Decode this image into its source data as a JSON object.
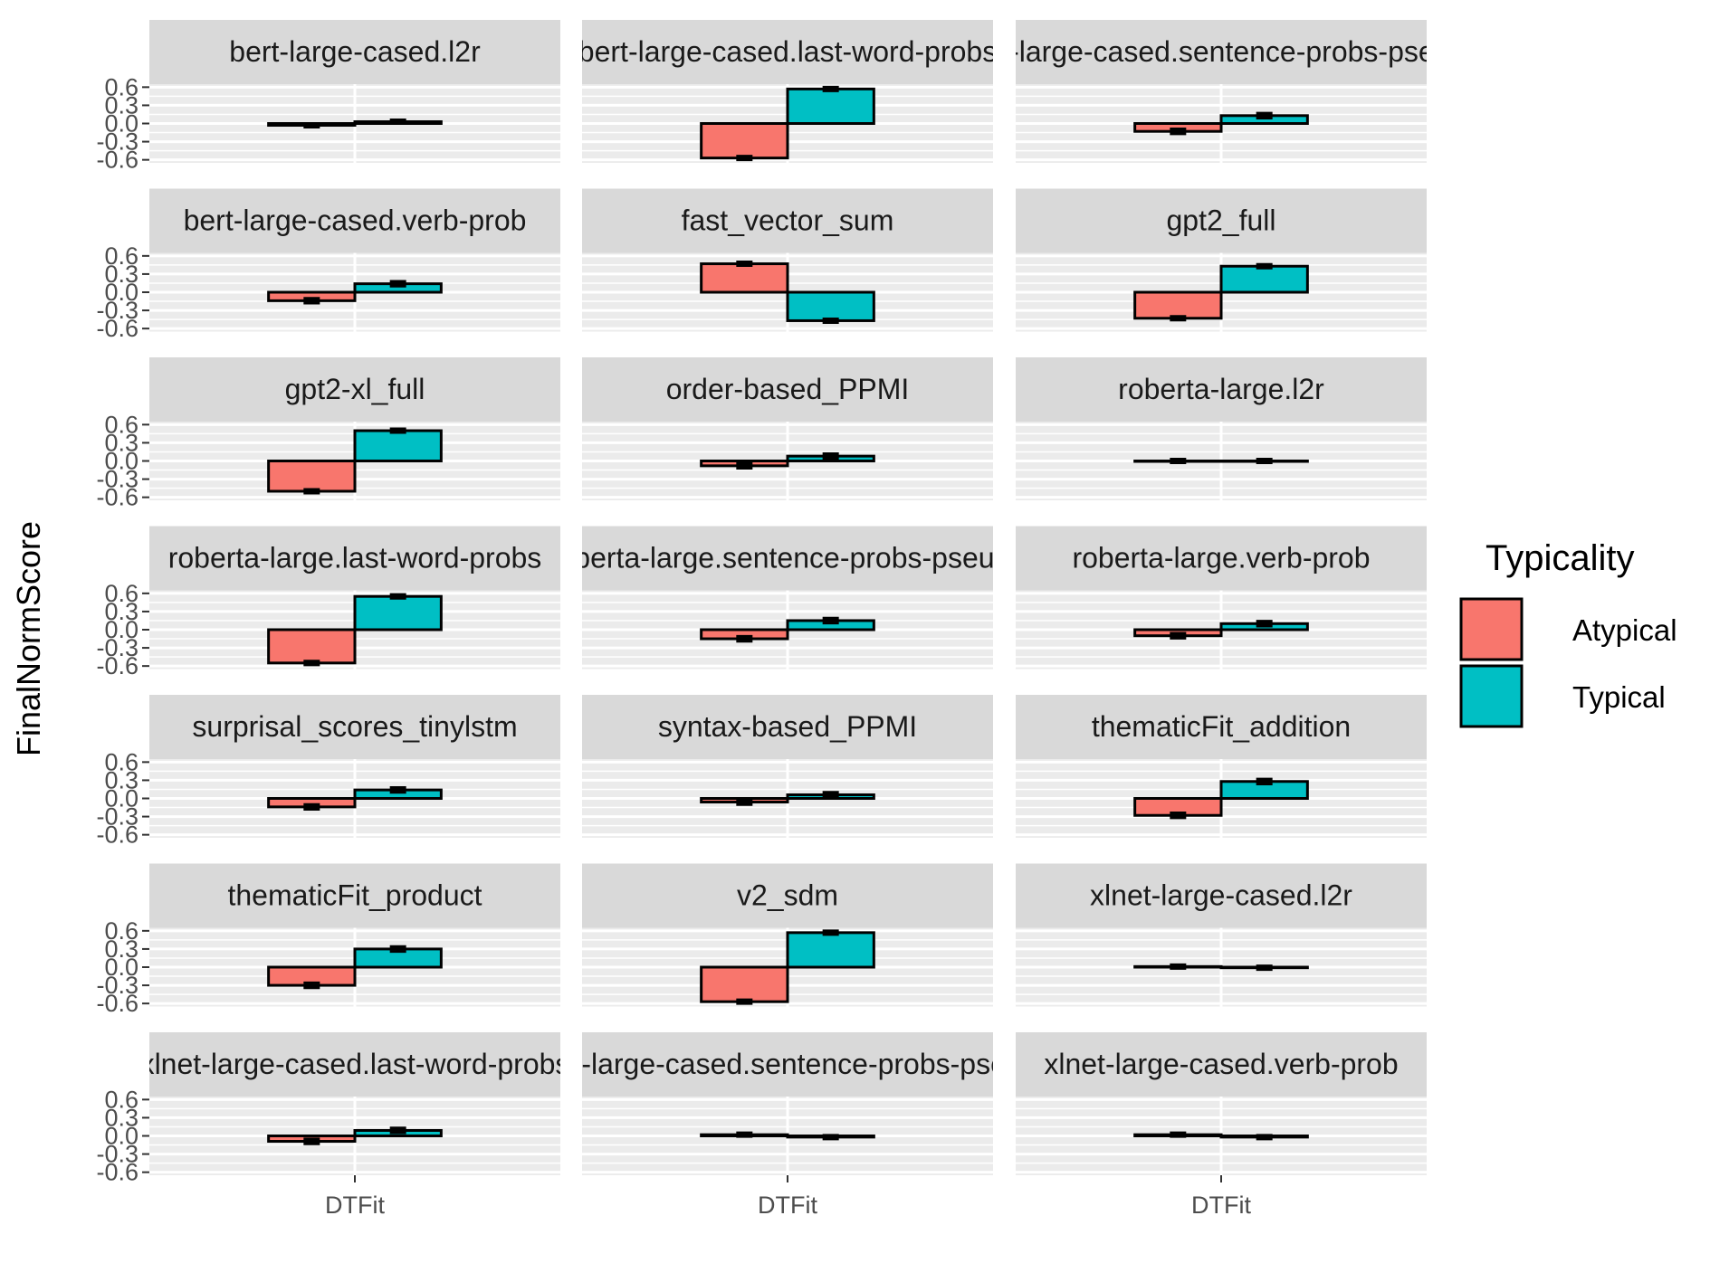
{
  "chart_data": {
    "type": "bar",
    "layout": "facet_wrap",
    "facet_columns": 3,
    "ylabel": "FinalNormScore",
    "x_category": "DTFit",
    "yticks": [
      0.6,
      0.3,
      0.0,
      -0.3,
      -0.6
    ],
    "ytick_labels": [
      "0.6",
      "0.3",
      "0.0",
      "-0.3",
      "-0.6"
    ],
    "ylim": [
      -0.65,
      0.65
    ],
    "grid": true,
    "legend": {
      "title": "Typicality",
      "position": "right",
      "entries": [
        {
          "name": "Atypical",
          "color": "#F8766D"
        },
        {
          "name": "Typical",
          "color": "#00BFC4"
        }
      ]
    },
    "series": [
      {
        "name": "Atypical",
        "color": "#F8766D"
      },
      {
        "name": "Typical",
        "color": "#00BFC4"
      }
    ],
    "facets": [
      {
        "label": "bert-large-cased.l2r",
        "values": [
          -0.03,
          0.03
        ],
        "errors": [
          0.03,
          0.03
        ]
      },
      {
        "label": "bert-large-cased.last-word-probs",
        "values": [
          -0.57,
          0.57
        ],
        "errors": [
          0.03,
          0.03
        ]
      },
      {
        "label": "bert-large-cased.sentence-probs-pseudo",
        "values": [
          -0.13,
          0.13
        ],
        "errors": [
          0.04,
          0.04
        ]
      },
      {
        "label": "bert-large-cased.verb-prob",
        "values": [
          -0.14,
          0.14
        ],
        "errors": [
          0.04,
          0.04
        ]
      },
      {
        "label": "fast_vector_sum",
        "values": [
          0.47,
          -0.47
        ],
        "errors": [
          0.03,
          0.03
        ]
      },
      {
        "label": "gpt2_full",
        "values": [
          -0.43,
          0.43
        ],
        "errors": [
          0.03,
          0.03
        ]
      },
      {
        "label": "gpt2-xl_full",
        "values": [
          -0.5,
          0.5
        ],
        "errors": [
          0.03,
          0.03
        ]
      },
      {
        "label": "order-based_PPMI",
        "values": [
          -0.08,
          0.08
        ],
        "errors": [
          0.04,
          0.04
        ]
      },
      {
        "label": "roberta-large.l2r",
        "values": [
          0.0,
          0.0
        ],
        "errors": [
          0.03,
          0.03
        ]
      },
      {
        "label": "roberta-large.last-word-probs",
        "values": [
          -0.55,
          0.55
        ],
        "errors": [
          0.03,
          0.03
        ]
      },
      {
        "label": "roberta-large.sentence-probs-pseudo",
        "values": [
          -0.15,
          0.15
        ],
        "errors": [
          0.04,
          0.04
        ]
      },
      {
        "label": "roberta-large.verb-prob",
        "values": [
          -0.1,
          0.1
        ],
        "errors": [
          0.04,
          0.04
        ]
      },
      {
        "label": "surprisal_scores_tinylstm",
        "values": [
          -0.14,
          0.14
        ],
        "errors": [
          0.04,
          0.04
        ]
      },
      {
        "label": "syntax-based_PPMI",
        "values": [
          -0.06,
          0.06
        ],
        "errors": [
          0.04,
          0.04
        ]
      },
      {
        "label": "thematicFit_addition",
        "values": [
          -0.28,
          0.28
        ],
        "errors": [
          0.04,
          0.04
        ]
      },
      {
        "label": "thematicFit_product",
        "values": [
          -0.3,
          0.3
        ],
        "errors": [
          0.04,
          0.04
        ]
      },
      {
        "label": "v2_sdm",
        "values": [
          -0.57,
          0.57
        ],
        "errors": [
          0.03,
          0.03
        ]
      },
      {
        "label": "xlnet-large-cased.l2r",
        "values": [
          0.01,
          -0.01
        ],
        "errors": [
          0.03,
          0.03
        ]
      },
      {
        "label": "xlnet-large-cased.last-word-probs",
        "values": [
          -0.09,
          0.09
        ],
        "errors": [
          0.04,
          0.04
        ]
      },
      {
        "label": "xlnet-large-cased.sentence-probs-pseudo",
        "values": [
          0.02,
          -0.02
        ],
        "errors": [
          0.03,
          0.03
        ]
      },
      {
        "label": "xlnet-large-cased.verb-prob",
        "values": [
          0.02,
          -0.02
        ],
        "errors": [
          0.03,
          0.03
        ]
      }
    ]
  }
}
